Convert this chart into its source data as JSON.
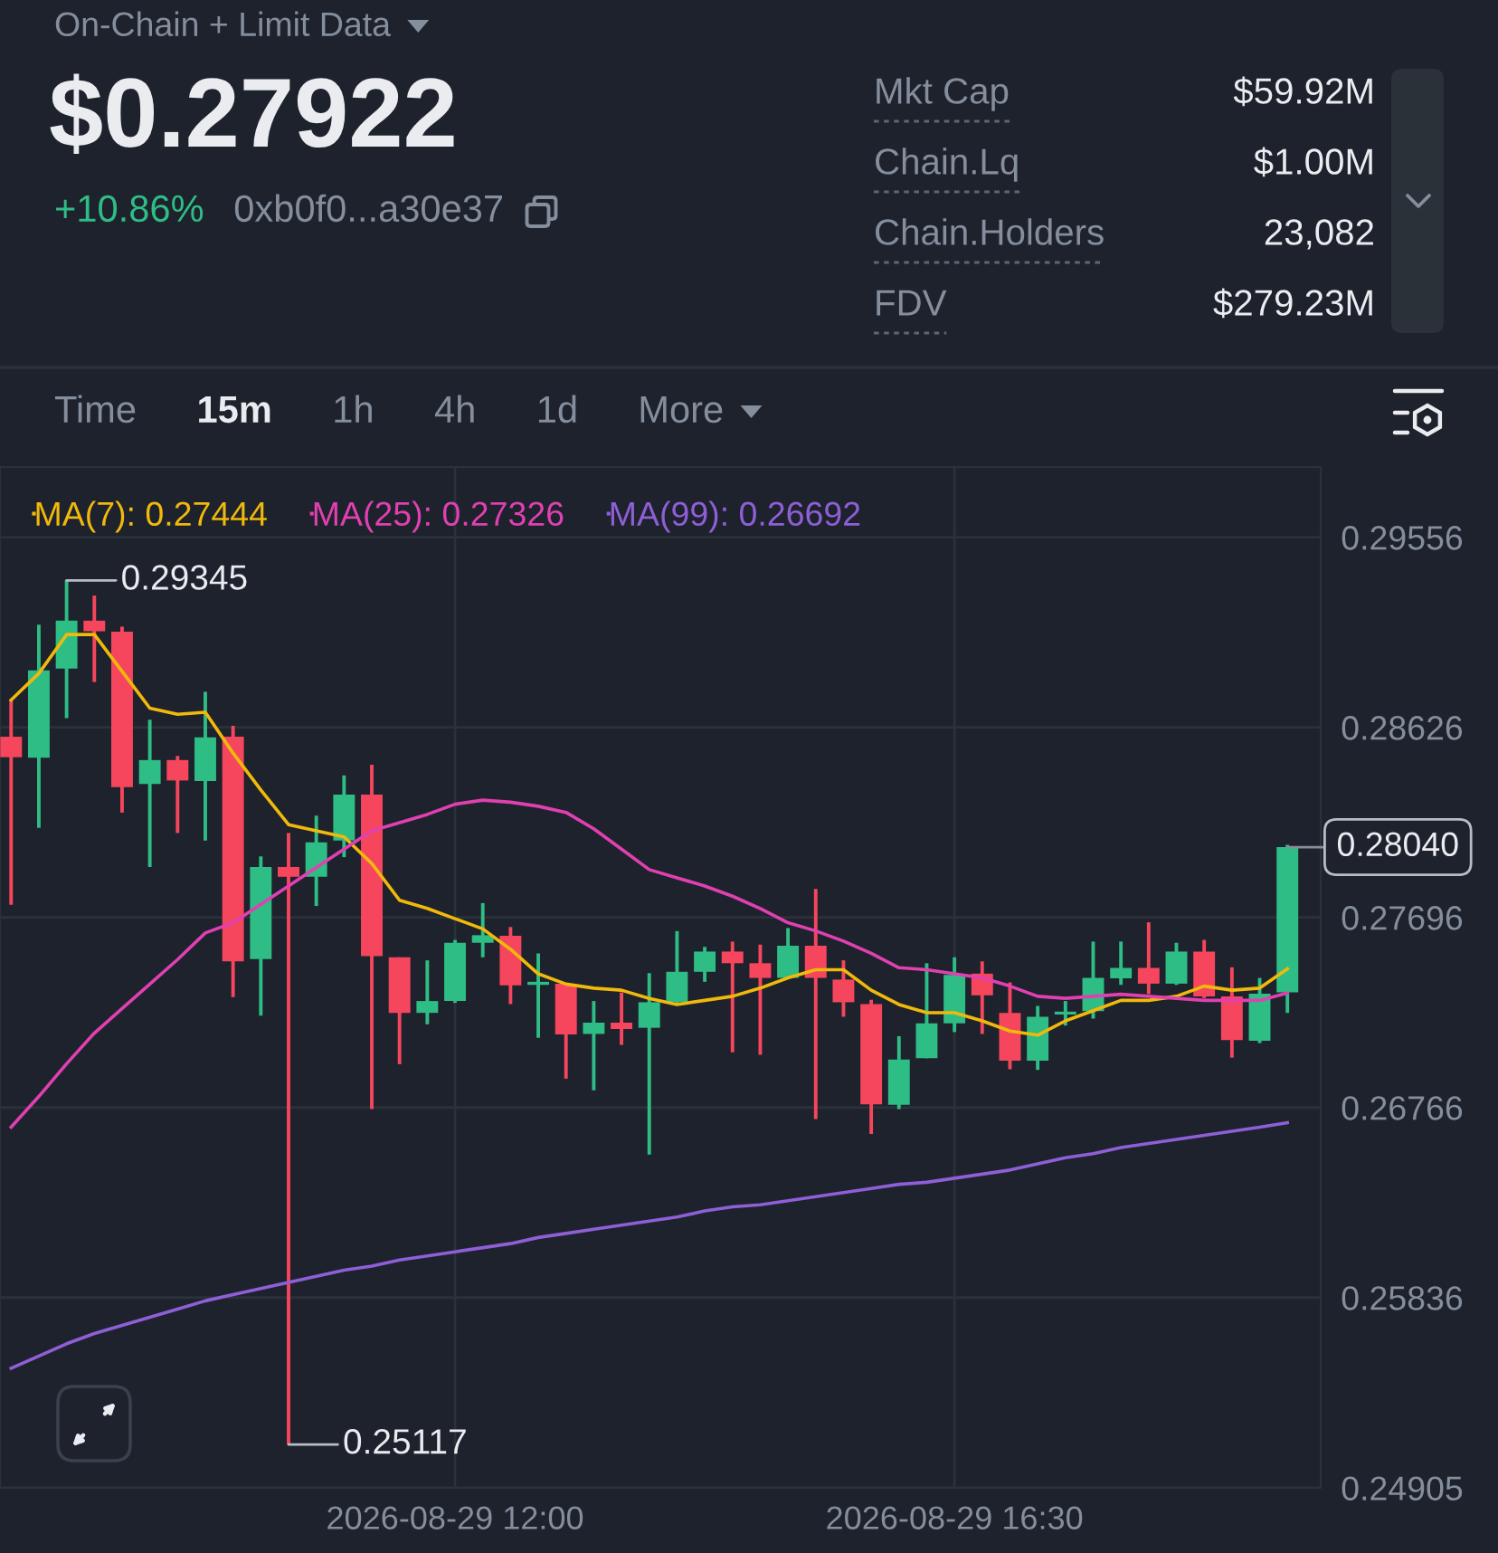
{
  "chart_data": [
    {
      "type": "other",
      "title": "On-Chain + Limit Data",
      "subtitle": "$0.27922",
      "annotations": [
        "+10.86%",
        "0xb0f0...a30e37",
        "Mkt Cap",
        "$59.92M",
        "Chain.Lq",
        "$1.00M",
        "Chain.Holders",
        "23,082",
        "FDV",
        "$279.23M",
        "Time",
        "15m",
        "1h",
        "4h",
        "1d",
        "More"
      ]
    },
    {
      "type": "candlestick",
      "x": [
        "2026-08-29T08:00",
        "2026-08-29T08:15",
        "2026-08-29T08:30",
        "2026-08-29T08:45",
        "2026-08-29T09:00",
        "2026-08-29T09:15",
        "2026-08-29T09:30",
        "2026-08-29T09:45",
        "2026-08-29T10:00",
        "2026-08-29T10:15",
        "2026-08-29T10:30",
        "2026-08-29T10:45",
        "2026-08-29T11:00",
        "2026-08-29T11:15",
        "2026-08-29T11:30",
        "2026-08-29T11:45",
        "2026-08-29T12:00",
        "2026-08-29T12:15",
        "2026-08-29T12:30",
        "2026-08-29T12:45",
        "2026-08-29T13:00",
        "2026-08-29T13:15",
        "2026-08-29T13:30",
        "2026-08-29T13:45",
        "2026-08-29T14:00",
        "2026-08-29T14:15",
        "2026-08-29T14:30",
        "2026-08-29T14:45",
        "2026-08-29T15:00",
        "2026-08-29T15:15",
        "2026-08-29T15:30",
        "2026-08-29T15:45",
        "2026-08-29T16:00",
        "2026-08-29T16:15",
        "2026-08-29T16:30",
        "2026-08-29T16:45",
        "2026-08-29T17:00",
        "2026-08-29T17:15",
        "2026-08-29T17:30",
        "2026-08-29T17:45",
        "2026-08-29T18:00",
        "2026-08-29T18:15",
        "2026-08-29T18:30",
        "2026-08-29T18:45",
        "2026-08-29T19:00",
        "2026-08-29T19:15",
        "2026-08-29T19:30"
      ],
      "ohlc": [
        [
          0.2858,
          0.2876,
          0.27758,
          0.2848
        ],
        [
          0.28477,
          0.29128,
          0.28134,
          0.28905
        ],
        [
          0.28914,
          0.29345,
          0.28671,
          0.29148
        ],
        [
          0.29148,
          0.29271,
          0.28848,
          0.29096
        ],
        [
          0.29094,
          0.29119,
          0.28209,
          0.28334
        ],
        [
          0.28349,
          0.28663,
          0.27943,
          0.28466
        ],
        [
          0.28466,
          0.28486,
          0.28109,
          0.28366
        ],
        [
          0.28363,
          0.288,
          0.28072,
          0.28577
        ],
        [
          0.2858,
          0.28634,
          0.27306,
          0.27481
        ],
        [
          0.27492,
          0.27995,
          0.27215,
          0.27943
        ],
        [
          0.27943,
          0.28109,
          0.25117,
          0.27895
        ],
        [
          0.27895,
          0.28194,
          0.27752,
          0.28063
        ],
        [
          0.28072,
          0.28391,
          0.27991,
          0.28297
        ],
        [
          0.28297,
          0.28443,
          0.26758,
          0.27507
        ],
        [
          0.27501,
          0.27501,
          0.26978,
          0.27229
        ],
        [
          0.27229,
          0.27486,
          0.27173,
          0.27287
        ],
        [
          0.27287,
          0.27586,
          0.27278,
          0.27572
        ],
        [
          0.27572,
          0.27766,
          0.27501,
          0.27609
        ],
        [
          0.27606,
          0.27649,
          0.27272,
          0.27364
        ],
        [
          0.27366,
          0.2752,
          0.27107,
          0.27381
        ],
        [
          0.27372,
          0.27372,
          0.26907,
          0.27124
        ],
        [
          0.27126,
          0.27287,
          0.2685,
          0.27181
        ],
        [
          0.27181,
          0.27329,
          0.27072,
          0.2715
        ],
        [
          0.27156,
          0.27424,
          0.26536,
          0.27281
        ],
        [
          0.27281,
          0.27629,
          0.27272,
          0.2743
        ],
        [
          0.2743,
          0.27552,
          0.27381,
          0.27529
        ],
        [
          0.27529,
          0.27578,
          0.27036,
          0.27472
        ],
        [
          0.27472,
          0.27563,
          0.27024,
          0.274
        ],
        [
          0.274,
          0.27644,
          0.274,
          0.27558
        ],
        [
          0.27558,
          0.27835,
          0.2671,
          0.274
        ],
        [
          0.27392,
          0.27486,
          0.2721,
          0.27281
        ],
        [
          0.27272,
          0.27293,
          0.26636,
          0.26781
        ],
        [
          0.26779,
          0.27115,
          0.26758,
          0.27001
        ],
        [
          0.27007,
          0.27472,
          0.27007,
          0.27178
        ],
        [
          0.27178,
          0.27501,
          0.27135,
          0.27415
        ],
        [
          0.27421,
          0.27481,
          0.27126,
          0.27315
        ],
        [
          0.27229,
          0.27378,
          0.26953,
          0.26995
        ],
        [
          0.26995,
          0.27263,
          0.2695,
          0.2721
        ],
        [
          0.27221,
          0.27287,
          0.27167,
          0.27235
        ],
        [
          0.27238,
          0.27578,
          0.27201,
          0.274
        ],
        [
          0.27398,
          0.27578,
          0.27366,
          0.27449
        ],
        [
          0.27449,
          0.27672,
          0.27321,
          0.27372
        ],
        [
          0.27372,
          0.27572,
          0.27366,
          0.27529
        ],
        [
          0.27529,
          0.27586,
          0.27301,
          0.2731
        ],
        [
          0.2731,
          0.27452,
          0.2701,
          0.27096
        ],
        [
          0.27092,
          0.274,
          0.27081,
          0.27323
        ],
        [
          0.27329,
          0.28051,
          0.27229,
          0.2804
        ]
      ],
      "colors": [
        "#f6465d",
        "#2ebd85",
        "#2ebd85",
        "#f6465d",
        "#f6465d",
        "#2ebd85",
        "#f6465d",
        "#2ebd85",
        "#f6465d",
        "#2ebd85",
        "#f6465d",
        "#2ebd85",
        "#2ebd85",
        "#f6465d",
        "#f6465d",
        "#2ebd85",
        "#2ebd85",
        "#2ebd85",
        "#f6465d",
        "#2ebd85",
        "#f6465d",
        "#2ebd85",
        "#f6465d",
        "#2ebd85",
        "#2ebd85",
        "#2ebd85",
        "#f6465d",
        "#f6465d",
        "#2ebd85",
        "#f6465d",
        "#f6465d",
        "#f6465d",
        "#2ebd85",
        "#2ebd85",
        "#2ebd85",
        "#f6465d",
        "#f6465d",
        "#2ebd85",
        "#2ebd85",
        "#2ebd85",
        "#2ebd85",
        "#f6465d",
        "#2ebd85",
        "#f6465d",
        "#f6465d",
        "#2ebd85",
        "#2ebd85"
      ],
      "series": [
        {
          "name": "MA(7): 0.27444",
          "type": "line",
          "color": "#f0b90b",
          "values": [
            0.2876,
            0.2889,
            0.2908,
            0.2908,
            0.289,
            0.2872,
            0.2869,
            0.287,
            0.285,
            0.2832,
            0.2815,
            0.2812,
            0.2809,
            0.2796,
            0.2778,
            0.2774,
            0.2769,
            0.2764,
            0.2754,
            0.2742,
            0.2737,
            0.2735,
            0.2734,
            0.273,
            0.2727,
            0.2729,
            0.2731,
            0.2735,
            0.274,
            0.2744,
            0.2744,
            0.2734,
            0.2727,
            0.2723,
            0.2723,
            0.2719,
            0.2714,
            0.2712,
            0.2719,
            0.2724,
            0.2729,
            0.2729,
            0.2731,
            0.2736,
            0.2734,
            0.2735,
            0.27444
          ]
        },
        {
          "name": "MA(25): 0.27326",
          "type": "line",
          "color": "#e040b0",
          "values": [
            0.2667,
            0.2682,
            0.2698,
            0.2713,
            0.2725,
            0.2737,
            0.2749,
            0.2762,
            0.2767,
            0.2776,
            0.2785,
            0.2794,
            0.2803,
            0.2812,
            0.2816,
            0.282,
            0.2825,
            0.2827,
            0.2826,
            0.2824,
            0.2821,
            0.2813,
            0.2803,
            0.2793,
            0.2789,
            0.2785,
            0.278,
            0.2774,
            0.2767,
            0.2763,
            0.2758,
            0.2752,
            0.2745,
            0.2744,
            0.2742,
            0.274,
            0.2736,
            0.2731,
            0.273,
            0.2731,
            0.2732,
            0.2731,
            0.273,
            0.2729,
            0.2729,
            0.2729,
            0.27326
          ]
        },
        {
          "name": "MA(99): 0.26692",
          "type": "line",
          "color": "#8e5fd6",
          "values": [
            0.2549,
            0.2555,
            0.2561,
            0.2566,
            0.257,
            0.2574,
            0.2578,
            0.2582,
            0.2585,
            0.2588,
            0.2591,
            0.2594,
            0.2597,
            0.2599,
            0.2602,
            0.2604,
            0.2606,
            0.2608,
            0.261,
            0.2613,
            0.2615,
            0.2617,
            0.2619,
            0.2621,
            0.2623,
            0.2626,
            0.2628,
            0.2629,
            0.2631,
            0.2633,
            0.2635,
            0.2637,
            0.2639,
            0.264,
            0.2642,
            0.2644,
            0.2646,
            0.2649,
            0.2652,
            0.2654,
            0.2657,
            0.2659,
            0.2661,
            0.2663,
            0.2665,
            0.2667,
            0.26692
          ]
        }
      ],
      "xlim": [
        "2026-08-29T07:54",
        "2026-08-29T19:48"
      ],
      "xticks": [
        {
          "value": "2026-08-29T12:00",
          "label": "2026-08-29 12:00"
        },
        {
          "value": "2026-08-29T16:30",
          "label": "2026-08-29 16:30"
        }
      ],
      "ylim": [
        0.24905,
        0.299
      ],
      "yticks": [
        0.29556,
        0.28626,
        0.27696,
        0.26766,
        0.25836,
        0.24905
      ],
      "grid": true,
      "legend": "top left",
      "annotations": [
        {
          "text": "0.29345",
          "x": "2026-08-29T08:30",
          "y": 0.29345
        },
        {
          "text": "0.25117",
          "x": "2026-08-29T10:30",
          "y": 0.25117
        },
        {
          "text": "0.28040",
          "x": "2026-08-29T19:30",
          "y": 0.2804
        }
      ]
    }
  ]
}
